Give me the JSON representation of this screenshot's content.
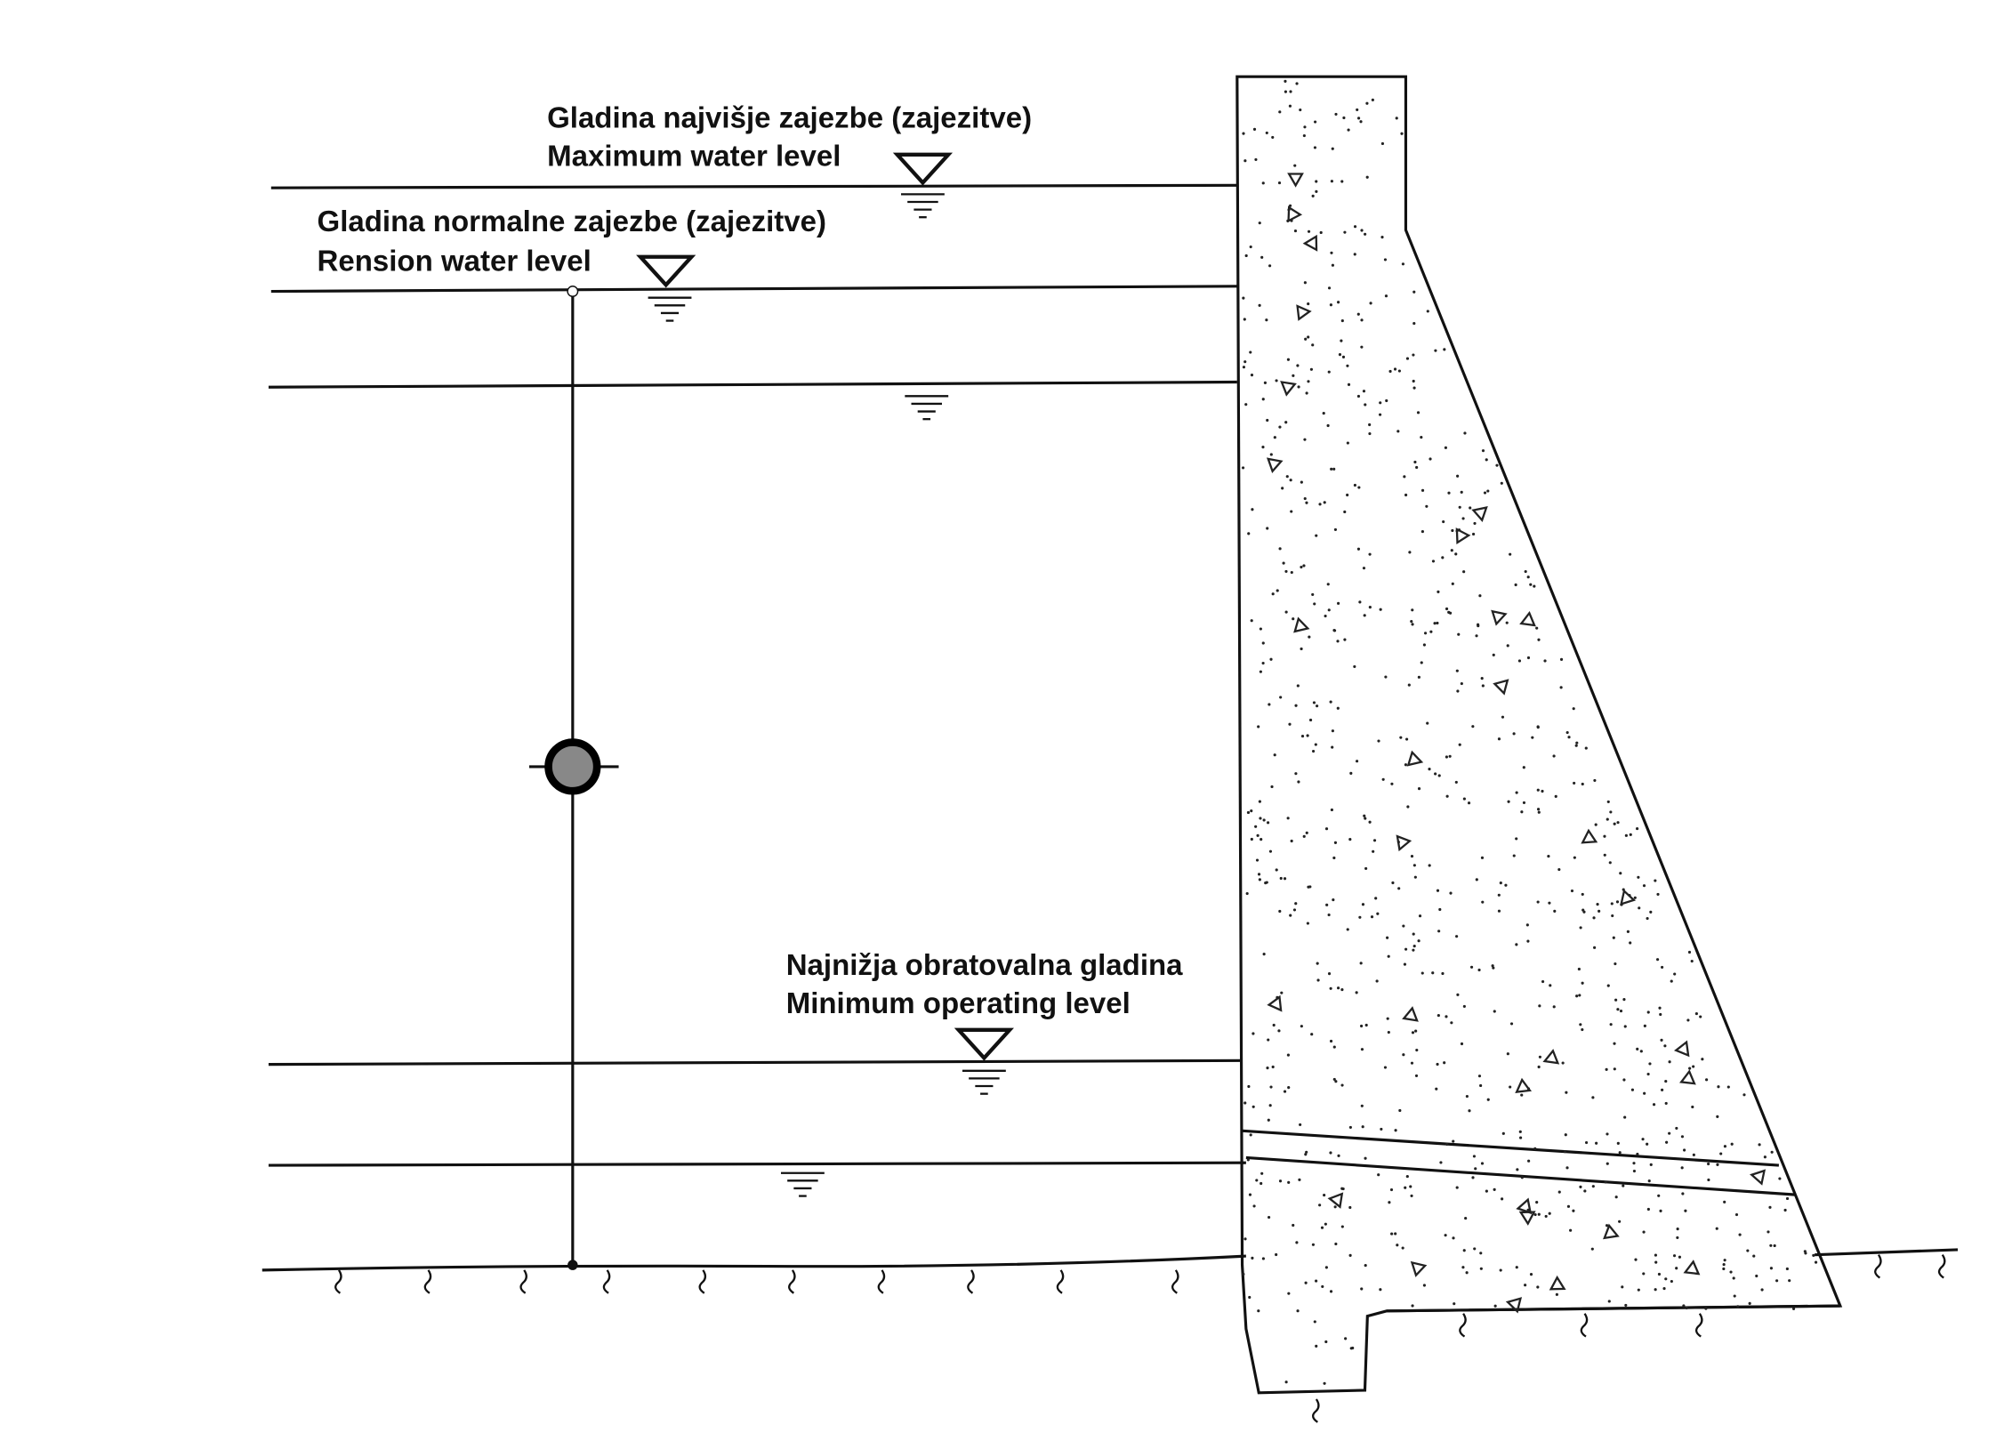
{
  "labels": [
    {
      "line1": "Gladina najvišje zajezbe (zajezitve)",
      "line2": "Maximum water level"
    },
    {
      "line1": "Gladina normalne zajezbe (zajezitve)",
      "line2": "Rension water level"
    },
    {
      "line1": "Najnižja obratovalna gladina",
      "line2": "Minimum operating level"
    }
  ]
}
